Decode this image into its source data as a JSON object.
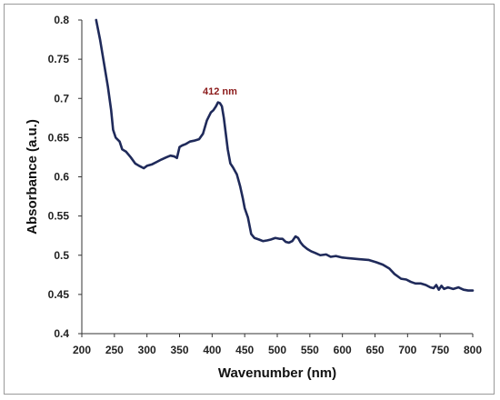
{
  "chart_data": {
    "type": "line",
    "title": "",
    "xlabel": "Wavenumber (nm)",
    "ylabel": "Absorbance (a.u.)",
    "xlim": [
      200,
      800
    ],
    "ylim": [
      0.4,
      0.8
    ],
    "x_ticks": [
      "200",
      "250",
      "300",
      "350",
      "400",
      "450",
      "500",
      "550",
      "600",
      "650",
      "700",
      "750",
      "800"
    ],
    "y_ticks": [
      "0.4",
      "0.45",
      "0.5",
      "0.55",
      "0.6",
      "0.65",
      "0.7",
      "0.75",
      "0.8"
    ],
    "grid": false,
    "legend": "none",
    "line_color": "#1f2a5a",
    "annotation": {
      "text": "412 nm",
      "x": 412,
      "y": 0.705,
      "color": "#8b1a1a"
    },
    "series": [
      {
        "x": [
          222,
          228,
          234,
          240,
          245,
          248,
          252,
          258,
          262,
          268,
          275,
          282,
          288,
          295,
          300,
          308,
          315,
          322,
          330,
          336,
          342,
          346,
          350,
          354,
          360,
          366,
          372,
          380,
          386,
          392,
          398,
          402,
          406,
          409,
          412,
          415,
          418,
          421,
          424,
          428,
          432,
          438,
          443,
          447,
          450,
          455,
          460,
          465,
          472,
          478,
          485,
          490,
          497,
          503,
          508,
          513,
          518,
          523,
          528,
          532,
          536,
          540,
          546,
          552,
          558,
          566,
          575,
          582,
          590,
          600,
          612,
          625,
          640,
          652,
          662,
          672,
          680,
          690,
          698,
          705,
          712,
          720,
          728,
          735,
          740,
          744,
          748,
          752,
          756,
          762,
          770,
          778,
          786,
          793,
          800
        ],
        "y": [
          0.8,
          0.775,
          0.745,
          0.715,
          0.685,
          0.66,
          0.65,
          0.645,
          0.635,
          0.632,
          0.625,
          0.617,
          0.614,
          0.611,
          0.614,
          0.616,
          0.619,
          0.622,
          0.625,
          0.627,
          0.626,
          0.624,
          0.638,
          0.64,
          0.642,
          0.645,
          0.646,
          0.648,
          0.655,
          0.672,
          0.682,
          0.685,
          0.69,
          0.695,
          0.694,
          0.69,
          0.675,
          0.655,
          0.635,
          0.617,
          0.612,
          0.603,
          0.588,
          0.573,
          0.56,
          0.548,
          0.527,
          0.522,
          0.52,
          0.518,
          0.519,
          0.52,
          0.522,
          0.521,
          0.521,
          0.517,
          0.516,
          0.518,
          0.524,
          0.522,
          0.516,
          0.512,
          0.508,
          0.505,
          0.503,
          0.5,
          0.501,
          0.498,
          0.499,
          0.497,
          0.496,
          0.495,
          0.494,
          0.491,
          0.488,
          0.483,
          0.476,
          0.47,
          0.469,
          0.466,
          0.464,
          0.464,
          0.462,
          0.459,
          0.458,
          0.462,
          0.456,
          0.461,
          0.457,
          0.459,
          0.457,
          0.459,
          0.456,
          0.455,
          0.455
        ]
      }
    ]
  }
}
